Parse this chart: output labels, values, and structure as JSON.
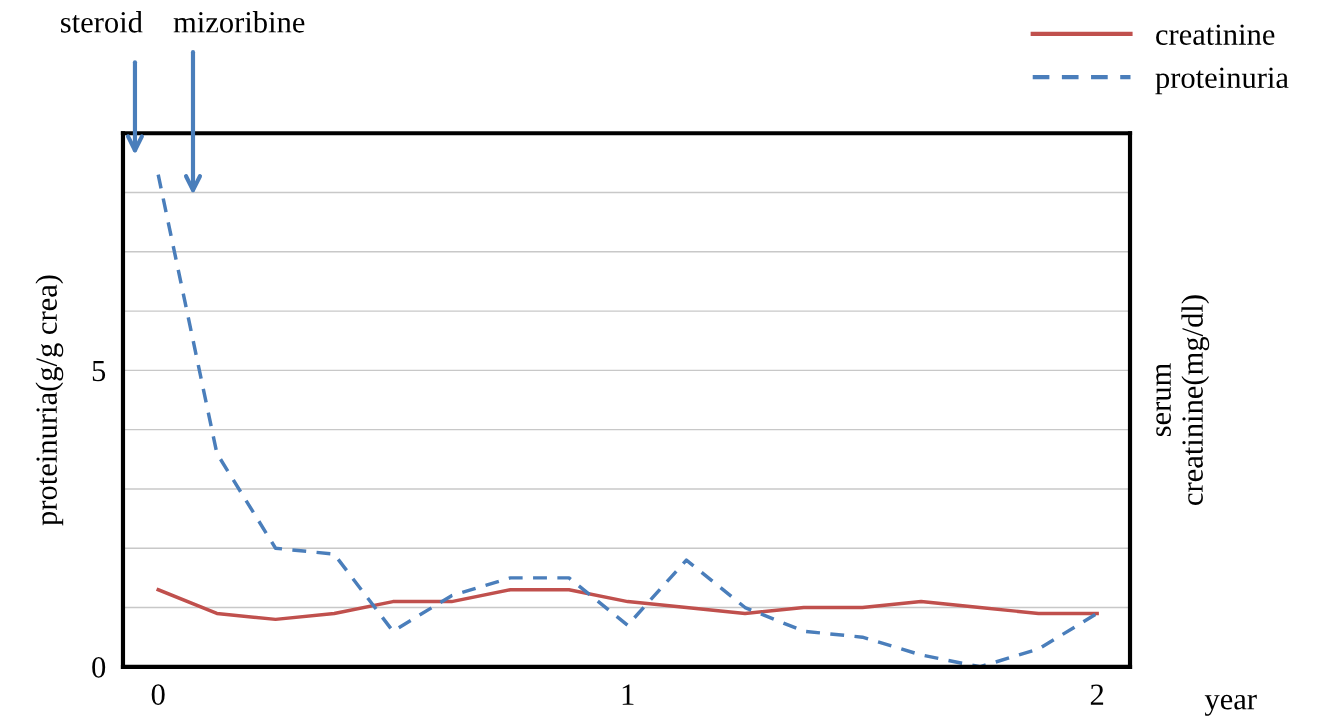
{
  "chart_data": {
    "type": "line",
    "x": [
      0,
      0.125,
      0.25,
      0.375,
      0.5,
      0.625,
      0.75,
      0.875,
      1,
      1.125,
      1.25,
      1.375,
      1.5,
      1.625,
      1.75,
      1.875,
      2
    ],
    "series": [
      {
        "name": "creatinine",
        "color": "#c0504d",
        "line_style": "solid",
        "values": [
          1.3,
          0.9,
          0.8,
          0.9,
          1.1,
          1.1,
          1.3,
          1.3,
          1.1,
          1.0,
          0.9,
          1.0,
          1.0,
          1.1,
          1.0,
          0.9,
          0.9
        ]
      },
      {
        "name": "proteinuria",
        "color": "#4a7ebb",
        "line_style": "dashed",
        "values": [
          8.3,
          3.6,
          2.0,
          1.9,
          0.6,
          1.2,
          1.5,
          1.5,
          0.7,
          1.8,
          1.0,
          0.6,
          0.5,
          0.2,
          0.0,
          0.3,
          0.9
        ]
      }
    ],
    "xlabel": "year",
    "ylabel": "proteinuria(g/g crea)",
    "y2label": "serum\ncreatinine(mg/dl)",
    "xlim": [
      -0.075,
      2.07
    ],
    "xticks": [
      0,
      1,
      2
    ],
    "ylim": [
      0,
      9
    ],
    "yticks": [
      0,
      {
        "value": 1,
        "label": null
      },
      {
        "value": 2,
        "label": null
      },
      {
        "value": 3,
        "label": null
      },
      {
        "value": 4,
        "label": null
      },
      5,
      {
        "value": 6,
        "label": null
      },
      {
        "value": 7,
        "label": null
      },
      {
        "value": 8,
        "label": null
      }
    ],
    "grid": "y",
    "legend": "top right",
    "marker": "none",
    "annotations": [
      "steroid",
      "mizoribine"
    ]
  }
}
